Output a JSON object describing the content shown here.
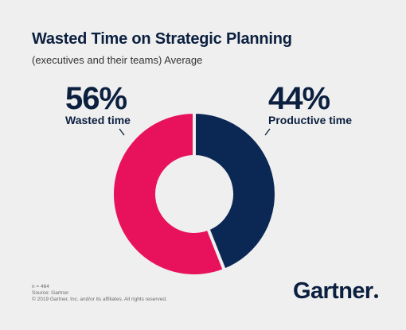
{
  "header": {
    "title": "Wasted Time on Strategic Planning",
    "subtitle": "(executives and their teams) Average"
  },
  "colors": {
    "background": "#efefef",
    "wasted": "#e8125c",
    "productive": "#0b2855",
    "text": "#0b1f3f"
  },
  "chart_data": {
    "type": "pie",
    "style": "donut",
    "title": "Wasted Time on Strategic Planning",
    "subtitle": "(executives and their teams) Average",
    "series": [
      {
        "name": "Wasted time",
        "value": 56,
        "display": "56%",
        "color": "#e8125c"
      },
      {
        "name": "Productive time",
        "value": 44,
        "display": "44%",
        "color": "#0b2855"
      }
    ],
    "legend": "none"
  },
  "footer": {
    "sample": "n = 464",
    "source": "Source: Gartner",
    "copyright": "© 2019 Gartner, Inc. and/or its affiliates. All rights reserved.",
    "brand": "Gartner"
  }
}
